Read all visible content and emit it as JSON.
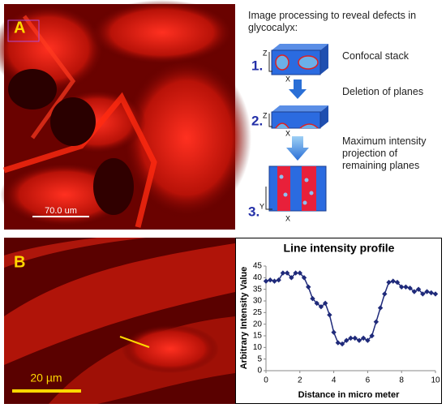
{
  "panel_a": {
    "label": "A",
    "scale_bar": "70.0 um",
    "heading": "Image processing to reveal defects in glycocalyx:",
    "steps": [
      {
        "number": "1.",
        "axis_v": "Z",
        "axis_h": "X",
        "text": "Confocal stack"
      },
      {
        "number": "2.",
        "axis_v": "Z",
        "axis_h": "X",
        "text": "Deletion of planes"
      },
      {
        "number": "3.",
        "axis_v": "Y",
        "axis_h": "X",
        "text": "Maximum intensity projection of remaining planes"
      }
    ]
  },
  "panel_b": {
    "label": "B",
    "scale_bar": "20 µm"
  },
  "chart_data": {
    "type": "line",
    "title": "Line intensity profile",
    "x_label": "Distance in micro meter",
    "y_label": "Arbitrary Intensity Value",
    "x": [
      0,
      0.25,
      0.5,
      0.75,
      1,
      1.25,
      1.5,
      1.75,
      2,
      2.25,
      2.5,
      2.75,
      3,
      3.25,
      3.5,
      3.75,
      4,
      4.25,
      4.5,
      4.75,
      5,
      5.25,
      5.5,
      5.75,
      6,
      6.25,
      6.5,
      6.75,
      7,
      7.25,
      7.5,
      7.75,
      8,
      8.25,
      8.5,
      8.75,
      9,
      9.25,
      9.5,
      9.75,
      10
    ],
    "series": [
      {
        "color": "#1f2a7a",
        "marker": "diamond",
        "values": [
          38.5,
          39,
          38.5,
          39,
          42,
          42,
          40,
          42,
          42,
          40,
          36,
          31,
          29,
          27.5,
          29,
          24,
          16.5,
          12,
          11.5,
          13,
          14,
          14,
          13,
          14,
          13,
          15,
          21,
          27,
          33,
          38,
          38.5,
          38,
          36,
          36,
          35.5,
          34,
          35,
          33,
          34,
          33.5,
          33
        ]
      }
    ],
    "xlim": [
      0,
      10
    ],
    "xticks": [
      0,
      2,
      4,
      6,
      8,
      10
    ],
    "ylim": [
      0,
      45
    ],
    "yticks": [
      0,
      5,
      10,
      15,
      20,
      25,
      30,
      35,
      40,
      45
    ],
    "grid": false
  }
}
